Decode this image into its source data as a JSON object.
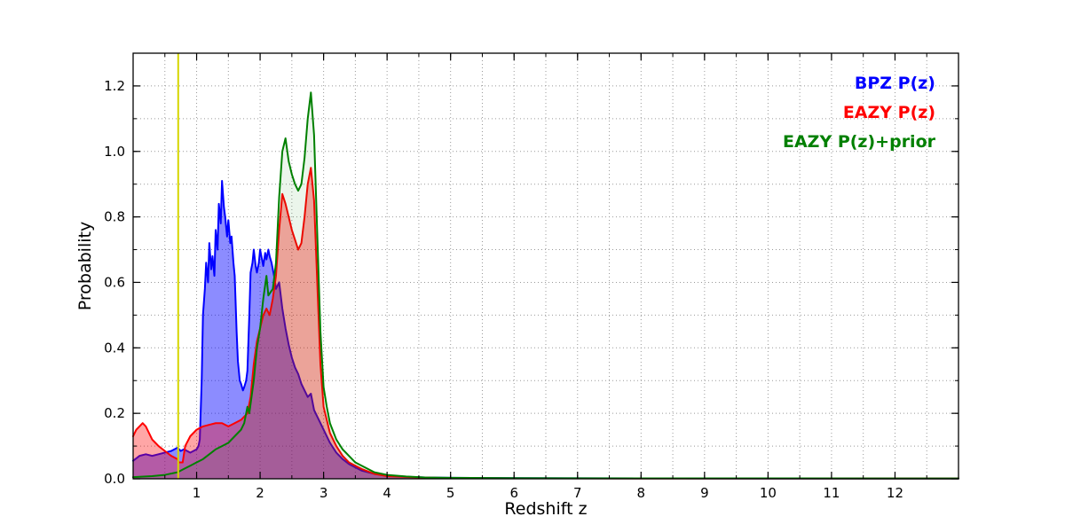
{
  "chart_data": {
    "type": "line",
    "title": "",
    "xlabel": "Redshift z",
    "ylabel": "Probability",
    "xlim": [
      0,
      13
    ],
    "ylim": [
      0,
      1.3
    ],
    "x_major_ticks": [
      1,
      2,
      3,
      4,
      5,
      6,
      7,
      8,
      9,
      10,
      11,
      12
    ],
    "x_minor_step": 0.5,
    "y_major_ticks": [
      {
        "value": 0.0,
        "label": "0.0"
      },
      {
        "value": 0.2,
        "label": "0.2"
      },
      {
        "value": 0.4,
        "label": "0.4"
      },
      {
        "value": 0.6,
        "label": "0.6"
      },
      {
        "value": 0.8,
        "label": "0.8"
      },
      {
        "value": 1.0,
        "label": "1.0"
      },
      {
        "value": 1.2,
        "label": "1.2"
      }
    ],
    "y_minor_step": 0.1,
    "grid": {
      "on": true,
      "style": "dotted",
      "color": "#999999"
    },
    "legend_position": "upper right",
    "vline": {
      "x": 0.71,
      "color": "#d6d600"
    },
    "series": [
      {
        "name": "bpz",
        "label": "BPZ P(z)",
        "color": "#0000ff",
        "fill": "rgba(0,0,255,0.45)",
        "points": [
          [
            0,
            0.055
          ],
          [
            0.1,
            0.07
          ],
          [
            0.2,
            0.075
          ],
          [
            0.3,
            0.07
          ],
          [
            0.4,
            0.075
          ],
          [
            0.5,
            0.08
          ],
          [
            0.6,
            0.085
          ],
          [
            0.7,
            0.095
          ],
          [
            0.75,
            0.085
          ],
          [
            0.8,
            0.09
          ],
          [
            0.9,
            0.08
          ],
          [
            0.95,
            0.085
          ],
          [
            1.0,
            0.09
          ],
          [
            1.03,
            0.1
          ],
          [
            1.05,
            0.12
          ],
          [
            1.08,
            0.3
          ],
          [
            1.1,
            0.5
          ],
          [
            1.13,
            0.58
          ],
          [
            1.15,
            0.66
          ],
          [
            1.18,
            0.6
          ],
          [
            1.2,
            0.72
          ],
          [
            1.23,
            0.64
          ],
          [
            1.25,
            0.68
          ],
          [
            1.28,
            0.62
          ],
          [
            1.3,
            0.76
          ],
          [
            1.33,
            0.7
          ],
          [
            1.35,
            0.84
          ],
          [
            1.38,
            0.78
          ],
          [
            1.4,
            0.91
          ],
          [
            1.43,
            0.83
          ],
          [
            1.45,
            0.8
          ],
          [
            1.48,
            0.74
          ],
          [
            1.5,
            0.79
          ],
          [
            1.53,
            0.72
          ],
          [
            1.55,
            0.74
          ],
          [
            1.58,
            0.66
          ],
          [
            1.6,
            0.62
          ],
          [
            1.63,
            0.45
          ],
          [
            1.65,
            0.36
          ],
          [
            1.68,
            0.3
          ],
          [
            1.7,
            0.29
          ],
          [
            1.73,
            0.27
          ],
          [
            1.75,
            0.28
          ],
          [
            1.78,
            0.3
          ],
          [
            1.8,
            0.33
          ],
          [
            1.83,
            0.5
          ],
          [
            1.85,
            0.63
          ],
          [
            1.88,
            0.66
          ],
          [
            1.9,
            0.7
          ],
          [
            1.93,
            0.65
          ],
          [
            1.95,
            0.63
          ],
          [
            1.98,
            0.66
          ],
          [
            2.0,
            0.7
          ],
          [
            2.03,
            0.67
          ],
          [
            2.05,
            0.65
          ],
          [
            2.08,
            0.69
          ],
          [
            2.1,
            0.67
          ],
          [
            2.13,
            0.7
          ],
          [
            2.15,
            0.68
          ],
          [
            2.18,
            0.66
          ],
          [
            2.2,
            0.64
          ],
          [
            2.23,
            0.61
          ],
          [
            2.25,
            0.58
          ],
          [
            2.3,
            0.6
          ],
          [
            2.35,
            0.52
          ],
          [
            2.4,
            0.46
          ],
          [
            2.45,
            0.41
          ],
          [
            2.5,
            0.37
          ],
          [
            2.55,
            0.34
          ],
          [
            2.6,
            0.32
          ],
          [
            2.65,
            0.29
          ],
          [
            2.7,
            0.27
          ],
          [
            2.75,
            0.25
          ],
          [
            2.8,
            0.26
          ],
          [
            2.85,
            0.21
          ],
          [
            2.9,
            0.19
          ],
          [
            2.95,
            0.17
          ],
          [
            3.0,
            0.15
          ],
          [
            3.1,
            0.11
          ],
          [
            3.2,
            0.08
          ],
          [
            3.3,
            0.06
          ],
          [
            3.4,
            0.045
          ],
          [
            3.5,
            0.035
          ],
          [
            3.6,
            0.025
          ],
          [
            3.8,
            0.015
          ],
          [
            4.0,
            0.01
          ],
          [
            4.3,
            0.006
          ],
          [
            4.6,
            0.004
          ],
          [
            5.0,
            0.003
          ],
          [
            6.0,
            0.002
          ],
          [
            8.0,
            0.0015
          ],
          [
            10.0,
            0.001
          ],
          [
            13.0,
            0.001
          ]
        ]
      },
      {
        "name": "eazy",
        "label": "EAZY P(z)",
        "color": "#ff0000",
        "fill": "rgba(255,0,0,0.35)",
        "points": [
          [
            0,
            0.13
          ],
          [
            0.05,
            0.15
          ],
          [
            0.1,
            0.16
          ],
          [
            0.15,
            0.17
          ],
          [
            0.2,
            0.16
          ],
          [
            0.25,
            0.14
          ],
          [
            0.3,
            0.12
          ],
          [
            0.35,
            0.11
          ],
          [
            0.4,
            0.1
          ],
          [
            0.5,
            0.085
          ],
          [
            0.6,
            0.07
          ],
          [
            0.65,
            0.065
          ],
          [
            0.7,
            0.06
          ],
          [
            0.72,
            0.05
          ],
          [
            0.78,
            0.05
          ],
          [
            0.82,
            0.1
          ],
          [
            0.9,
            0.13
          ],
          [
            1.0,
            0.15
          ],
          [
            1.1,
            0.16
          ],
          [
            1.2,
            0.165
          ],
          [
            1.3,
            0.17
          ],
          [
            1.4,
            0.17
          ],
          [
            1.5,
            0.16
          ],
          [
            1.6,
            0.17
          ],
          [
            1.7,
            0.18
          ],
          [
            1.8,
            0.2
          ],
          [
            1.85,
            0.25
          ],
          [
            1.9,
            0.35
          ],
          [
            1.95,
            0.42
          ],
          [
            2.0,
            0.46
          ],
          [
            2.05,
            0.5
          ],
          [
            2.1,
            0.52
          ],
          [
            2.15,
            0.5
          ],
          [
            2.2,
            0.55
          ],
          [
            2.25,
            0.62
          ],
          [
            2.3,
            0.76
          ],
          [
            2.35,
            0.87
          ],
          [
            2.4,
            0.84
          ],
          [
            2.45,
            0.8
          ],
          [
            2.5,
            0.76
          ],
          [
            2.55,
            0.73
          ],
          [
            2.6,
            0.7
          ],
          [
            2.65,
            0.72
          ],
          [
            2.7,
            0.8
          ],
          [
            2.75,
            0.9
          ],
          [
            2.8,
            0.95
          ],
          [
            2.85,
            0.85
          ],
          [
            2.9,
            0.6
          ],
          [
            2.95,
            0.35
          ],
          [
            3.0,
            0.22
          ],
          [
            3.05,
            0.18
          ],
          [
            3.1,
            0.14
          ],
          [
            3.2,
            0.1
          ],
          [
            3.3,
            0.07
          ],
          [
            3.4,
            0.05
          ],
          [
            3.5,
            0.04
          ],
          [
            3.6,
            0.03
          ],
          [
            3.8,
            0.015
          ],
          [
            4.0,
            0.008
          ],
          [
            4.5,
            0.004
          ],
          [
            5.0,
            0.002
          ],
          [
            6.0,
            0.0015
          ],
          [
            8.0,
            0.001
          ],
          [
            13.0,
            0.001
          ]
        ]
      },
      {
        "name": "eazy_prior",
        "label": "EAZY P(z)+prior",
        "color": "#008000",
        "fill": "rgba(0,128,0,0.08)",
        "points": [
          [
            0,
            0.005
          ],
          [
            0.3,
            0.008
          ],
          [
            0.5,
            0.012
          ],
          [
            0.7,
            0.02
          ],
          [
            0.8,
            0.03
          ],
          [
            0.9,
            0.04
          ],
          [
            1.0,
            0.05
          ],
          [
            1.1,
            0.06
          ],
          [
            1.2,
            0.075
          ],
          [
            1.3,
            0.09
          ],
          [
            1.4,
            0.1
          ],
          [
            1.5,
            0.11
          ],
          [
            1.6,
            0.13
          ],
          [
            1.7,
            0.15
          ],
          [
            1.75,
            0.17
          ],
          [
            1.8,
            0.22
          ],
          [
            1.83,
            0.2
          ],
          [
            1.9,
            0.3
          ],
          [
            1.95,
            0.4
          ],
          [
            2.0,
            0.46
          ],
          [
            2.05,
            0.55
          ],
          [
            2.1,
            0.62
          ],
          [
            2.13,
            0.56
          ],
          [
            2.2,
            0.58
          ],
          [
            2.25,
            0.66
          ],
          [
            2.3,
            0.86
          ],
          [
            2.35,
            1.0
          ],
          [
            2.4,
            1.04
          ],
          [
            2.45,
            0.97
          ],
          [
            2.5,
            0.93
          ],
          [
            2.55,
            0.9
          ],
          [
            2.6,
            0.88
          ],
          [
            2.65,
            0.9
          ],
          [
            2.7,
            0.98
          ],
          [
            2.75,
            1.1
          ],
          [
            2.8,
            1.18
          ],
          [
            2.85,
            1.05
          ],
          [
            2.9,
            0.75
          ],
          [
            2.95,
            0.45
          ],
          [
            3.0,
            0.28
          ],
          [
            3.05,
            0.22
          ],
          [
            3.1,
            0.17
          ],
          [
            3.2,
            0.12
          ],
          [
            3.3,
            0.09
          ],
          [
            3.4,
            0.07
          ],
          [
            3.5,
            0.05
          ],
          [
            3.6,
            0.04
          ],
          [
            3.8,
            0.02
          ],
          [
            4.0,
            0.012
          ],
          [
            4.3,
            0.007
          ],
          [
            4.6,
            0.004
          ],
          [
            5.0,
            0.003
          ],
          [
            6.0,
            0.002
          ],
          [
            8.0,
            0.0015
          ],
          [
            13.0,
            0.001
          ]
        ]
      }
    ]
  }
}
